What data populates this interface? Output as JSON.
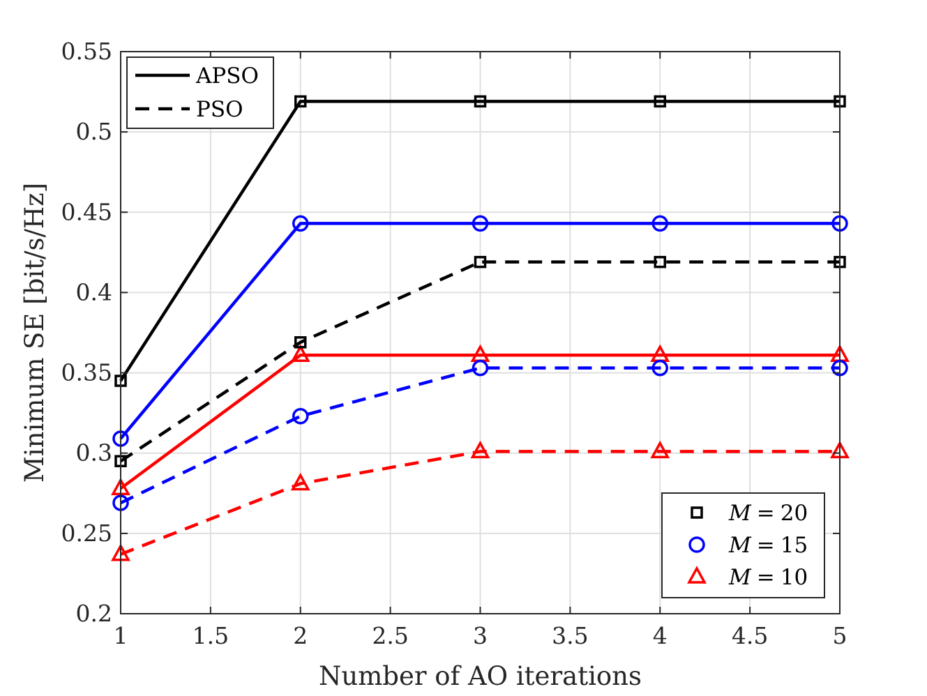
{
  "chart_data": {
    "type": "line",
    "xlabel": "Number of AO iterations",
    "ylabel": "Minimum SE [bit/s/Hz]",
    "xlim": [
      1,
      5
    ],
    "ylim": [
      0.2,
      0.55
    ],
    "xticks": [
      1,
      1.5,
      2,
      2.5,
      3,
      3.5,
      4,
      4.5,
      5
    ],
    "xtick_labels": [
      "1",
      "1.5",
      "2",
      "2.5",
      "3",
      "3.5",
      "4",
      "4.5",
      "5"
    ],
    "yticks": [
      0.2,
      0.25,
      0.3,
      0.35,
      0.4,
      0.45,
      0.5,
      0.55
    ],
    "ytick_labels": [
      "0.2",
      "0.25",
      "0.3",
      "0.35",
      "0.4",
      "0.45",
      "0.5",
      "0.55"
    ],
    "grid": true,
    "x": [
      1,
      2,
      3,
      4,
      5
    ],
    "series": [
      {
        "name": "APSO, M = 20",
        "method": "APSO",
        "M": 20,
        "color": "#000000",
        "marker": "square",
        "dash": "solid",
        "values": [
          0.345,
          0.519,
          0.519,
          0.519,
          0.519
        ]
      },
      {
        "name": "APSO, M = 15",
        "method": "APSO",
        "M": 15,
        "color": "#0000ff",
        "marker": "circle",
        "dash": "solid",
        "values": [
          0.309,
          0.443,
          0.443,
          0.443,
          0.443
        ]
      },
      {
        "name": "APSO, M = 10",
        "method": "APSO",
        "M": 10,
        "color": "#ff0000",
        "marker": "triangle",
        "dash": "solid",
        "values": [
          0.278,
          0.361,
          0.361,
          0.361,
          0.361
        ]
      },
      {
        "name": "PSO, M = 20",
        "method": "PSO",
        "M": 20,
        "color": "#000000",
        "marker": "square",
        "dash": "dashed",
        "values": [
          0.295,
          0.369,
          0.419,
          0.419,
          0.419
        ]
      },
      {
        "name": "PSO, M = 15",
        "method": "PSO",
        "M": 15,
        "color": "#0000ff",
        "marker": "circle",
        "dash": "dashed",
        "values": [
          0.269,
          0.323,
          0.353,
          0.353,
          0.353
        ]
      },
      {
        "name": "PSO, M = 10",
        "method": "PSO",
        "M": 10,
        "color": "#ff0000",
        "marker": "triangle",
        "dash": "dashed",
        "values": [
          0.237,
          0.281,
          0.301,
          0.301,
          0.301
        ]
      }
    ],
    "legend_methods": {
      "placement": "top-left",
      "entries": [
        {
          "label": "APSO",
          "dash": "solid"
        },
        {
          "label": "PSO",
          "dash": "dashed"
        }
      ]
    },
    "legend_markers": {
      "placement": "bottom-right",
      "entries": [
        {
          "var": "M",
          "eq": "=",
          "value": "20",
          "marker": "square",
          "color": "#000000"
        },
        {
          "var": "M",
          "eq": "=",
          "value": "15",
          "marker": "circle",
          "color": "#0000ff"
        },
        {
          "var": "M",
          "eq": "=",
          "value": "10",
          "marker": "triangle",
          "color": "#ff0000"
        }
      ]
    }
  }
}
